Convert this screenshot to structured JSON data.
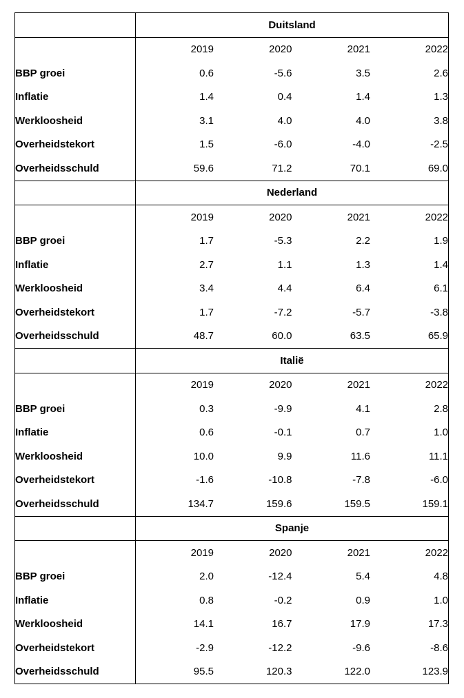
{
  "table": {
    "years": [
      "2019",
      "2020",
      "2021",
      "2022"
    ],
    "sections": [
      {
        "country": "Duitsland",
        "rows": [
          {
            "label": "BBP groei",
            "values": [
              "0.6",
              "-5.6",
              "3.5",
              "2.6"
            ]
          },
          {
            "label": "Inflatie",
            "values": [
              "1.4",
              "0.4",
              "1.4",
              "1.3"
            ]
          },
          {
            "label": "Werkloosheid",
            "values": [
              "3.1",
              "4.0",
              "4.0",
              "3.8"
            ]
          },
          {
            "label": "Overheidstekort",
            "values": [
              "1.5",
              "-6.0",
              "-4.0",
              "-2.5"
            ]
          },
          {
            "label": "Overheidsschuld",
            "values": [
              "59.6",
              "71.2",
              "70.1",
              "69.0"
            ]
          }
        ]
      },
      {
        "country": "Nederland",
        "rows": [
          {
            "label": "BBP groei",
            "values": [
              "1.7",
              "-5.3",
              "2.2",
              "1.9"
            ]
          },
          {
            "label": "Inflatie",
            "values": [
              "2.7",
              "1.1",
              "1.3",
              "1.4"
            ]
          },
          {
            "label": "Werkloosheid",
            "values": [
              "3.4",
              "4.4",
              "6.4",
              "6.1"
            ]
          },
          {
            "label": "Overheidstekort",
            "values": [
              "1.7",
              "-7.2",
              "-5.7",
              "-3.8"
            ]
          },
          {
            "label": "Overheidsschuld",
            "values": [
              "48.7",
              "60.0",
              "63.5",
              "65.9"
            ]
          }
        ]
      },
      {
        "country": "Italië",
        "rows": [
          {
            "label": "BBP groei",
            "values": [
              "0.3",
              "-9.9",
              "4.1",
              "2.8"
            ]
          },
          {
            "label": "Inflatie",
            "values": [
              "0.6",
              "-0.1",
              "0.7",
              "1.0"
            ]
          },
          {
            "label": "Werkloosheid",
            "values": [
              "10.0",
              "9.9",
              "11.6",
              "11.1"
            ]
          },
          {
            "label": "Overheidstekort",
            "values": [
              "-1.6",
              "-10.8",
              "-7.8",
              "-6.0"
            ]
          },
          {
            "label": "Overheidsschuld",
            "values": [
              "134.7",
              "159.6",
              "159.5",
              "159.1"
            ]
          }
        ]
      },
      {
        "country": "Spanje",
        "rows": [
          {
            "label": "BBP groei",
            "values": [
              "2.0",
              "-12.4",
              "5.4",
              "4.8"
            ]
          },
          {
            "label": "Inflatie",
            "values": [
              "0.8",
              "-0.2",
              "0.9",
              "1.0"
            ]
          },
          {
            "label": "Werkloosheid",
            "values": [
              "14.1",
              "16.7",
              "17.9",
              "17.3"
            ]
          },
          {
            "label": "Overheidstekort",
            "values": [
              "-2.9",
              "-12.2",
              "-9.6",
              "-8.6"
            ]
          },
          {
            "label": "Overheidsschuld",
            "values": [
              "95.5",
              "120.3",
              "122.0",
              "123.9"
            ]
          }
        ]
      }
    ]
  }
}
